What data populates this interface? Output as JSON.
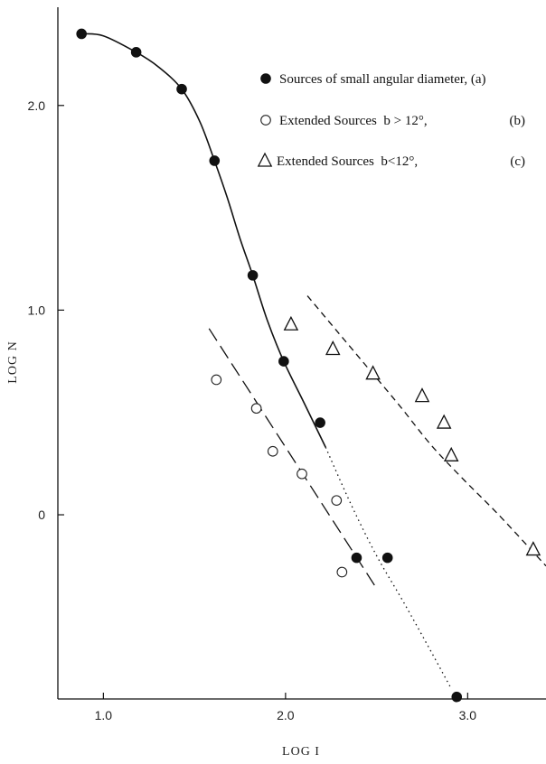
{
  "chart_data": {
    "type": "scatter",
    "xlabel": "LOG I",
    "ylabel": "LOG N",
    "xlim": [
      0.75,
      3.43
    ],
    "ylim": [
      -0.9,
      2.48
    ],
    "x_ticks": [
      1.0,
      2.0,
      3.0
    ],
    "x_tick_labels": [
      "1.0",
      "2.0",
      "3.0"
    ],
    "y_ticks": [
      0,
      1.0,
      2.0
    ],
    "y_tick_labels": [
      "0",
      "1.0",
      "2.0"
    ],
    "grid": false,
    "legend_position": "top-right",
    "series": [
      {
        "name": "Sources of small angular diameter, (a)",
        "legend_tag": "",
        "marker": "filled-circle",
        "x": [
          0.88,
          1.18,
          1.43,
          1.61,
          1.82,
          1.99,
          2.19,
          2.39,
          2.56,
          2.94
        ],
        "y": [
          2.35,
          2.26,
          2.08,
          1.73,
          1.17,
          0.75,
          0.45,
          -0.21,
          -0.21,
          -0.89
        ]
      },
      {
        "name": "Extended Sources  b > 12°,",
        "legend_tag": "(b)",
        "marker": "open-circle",
        "x": [
          1.62,
          1.84,
          1.93,
          2.09,
          2.28,
          2.31
        ],
        "y": [
          0.66,
          0.52,
          0.31,
          0.2,
          0.07,
          -0.28
        ]
      },
      {
        "name": "Extended Sources  b<12°,",
        "legend_tag": "(c)",
        "marker": "open-triangle",
        "x": [
          2.03,
          2.26,
          2.48,
          2.75,
          2.87,
          2.91,
          3.36
        ],
        "y": [
          0.93,
          0.81,
          0.69,
          0.58,
          0.45,
          0.29,
          -0.17
        ]
      }
    ],
    "curves": [
      {
        "for": "a",
        "style": "solid",
        "x": [
          0.88,
          1.0,
          1.18,
          1.3,
          1.43,
          1.53,
          1.61,
          1.68,
          1.75,
          1.82,
          1.9,
          1.99,
          2.1,
          2.22
        ],
        "y": [
          2.35,
          2.34,
          2.26,
          2.19,
          2.08,
          1.92,
          1.73,
          1.55,
          1.35,
          1.17,
          0.95,
          0.75,
          0.55,
          0.33
        ]
      },
      {
        "for": "a",
        "style": "dotted",
        "x": [
          2.22,
          2.36,
          2.5,
          2.65,
          2.8,
          2.91
        ],
        "y": [
          0.33,
          0.05,
          -0.2,
          -0.43,
          -0.67,
          -0.85
        ]
      },
      {
        "for": "b",
        "style": "long-dash",
        "x": [
          1.58,
          2.5
        ],
        "y": [
          0.91,
          -0.36
        ]
      },
      {
        "for": "c",
        "style": "dashed",
        "x": [
          2.12,
          2.28,
          2.45,
          2.62,
          2.8,
          2.98,
          3.17,
          3.43
        ],
        "y": [
          1.07,
          0.9,
          0.72,
          0.54,
          0.34,
          0.17,
          0.0,
          -0.25
        ]
      }
    ]
  }
}
